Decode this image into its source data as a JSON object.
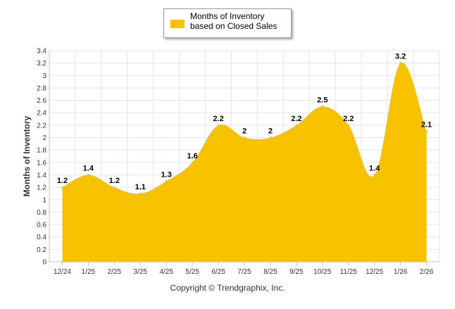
{
  "chart_data": {
    "type": "area",
    "title": "",
    "legend": {
      "label": "Months of Inventory based on Closed Sales",
      "placement": "top-center"
    },
    "xlabel": "",
    "ylabel": "Months of Inventory",
    "ylim": [
      0,
      3.4
    ],
    "ytick_step": 0.2,
    "ytick_labels": [
      "0",
      "0.2",
      "0.4",
      "0.6",
      "0.8",
      "1",
      "1.2",
      "1.4",
      "1.6",
      "1.8",
      "2",
      "2.2",
      "2.4",
      "2.6",
      "2.8",
      "3",
      "3.2",
      "3.4"
    ],
    "grid": true,
    "categories": [
      "12/24",
      "1/25",
      "2/25",
      "3/25",
      "4/25",
      "5/25",
      "6/25",
      "7/25",
      "8/25",
      "9/25",
      "10/25",
      "11/25",
      "12/25",
      "1/26",
      "2/26"
    ],
    "series": [
      {
        "name": "Months of Inventory based on Closed Sales",
        "color": "#f7c200",
        "values": [
          1.2,
          1.4,
          1.2,
          1.1,
          1.3,
          1.6,
          2.2,
          2,
          2,
          2.2,
          2.5,
          2.2,
          1.4,
          3.2,
          2.1
        ],
        "labels": [
          "1.2",
          "1.4",
          "1.2",
          "1.1",
          "1.3",
          "1.6",
          "2.2",
          "2",
          "2",
          "2.2",
          "2.5",
          "2.2",
          "1.4",
          "3.2",
          "2.1"
        ]
      }
    ]
  },
  "footer": {
    "copyright": "Copyright © Trendgraphix, Inc."
  },
  "colors": {
    "grid": "#e6e6e6",
    "axis": "#c0c0c0",
    "area": "#f7c200"
  }
}
